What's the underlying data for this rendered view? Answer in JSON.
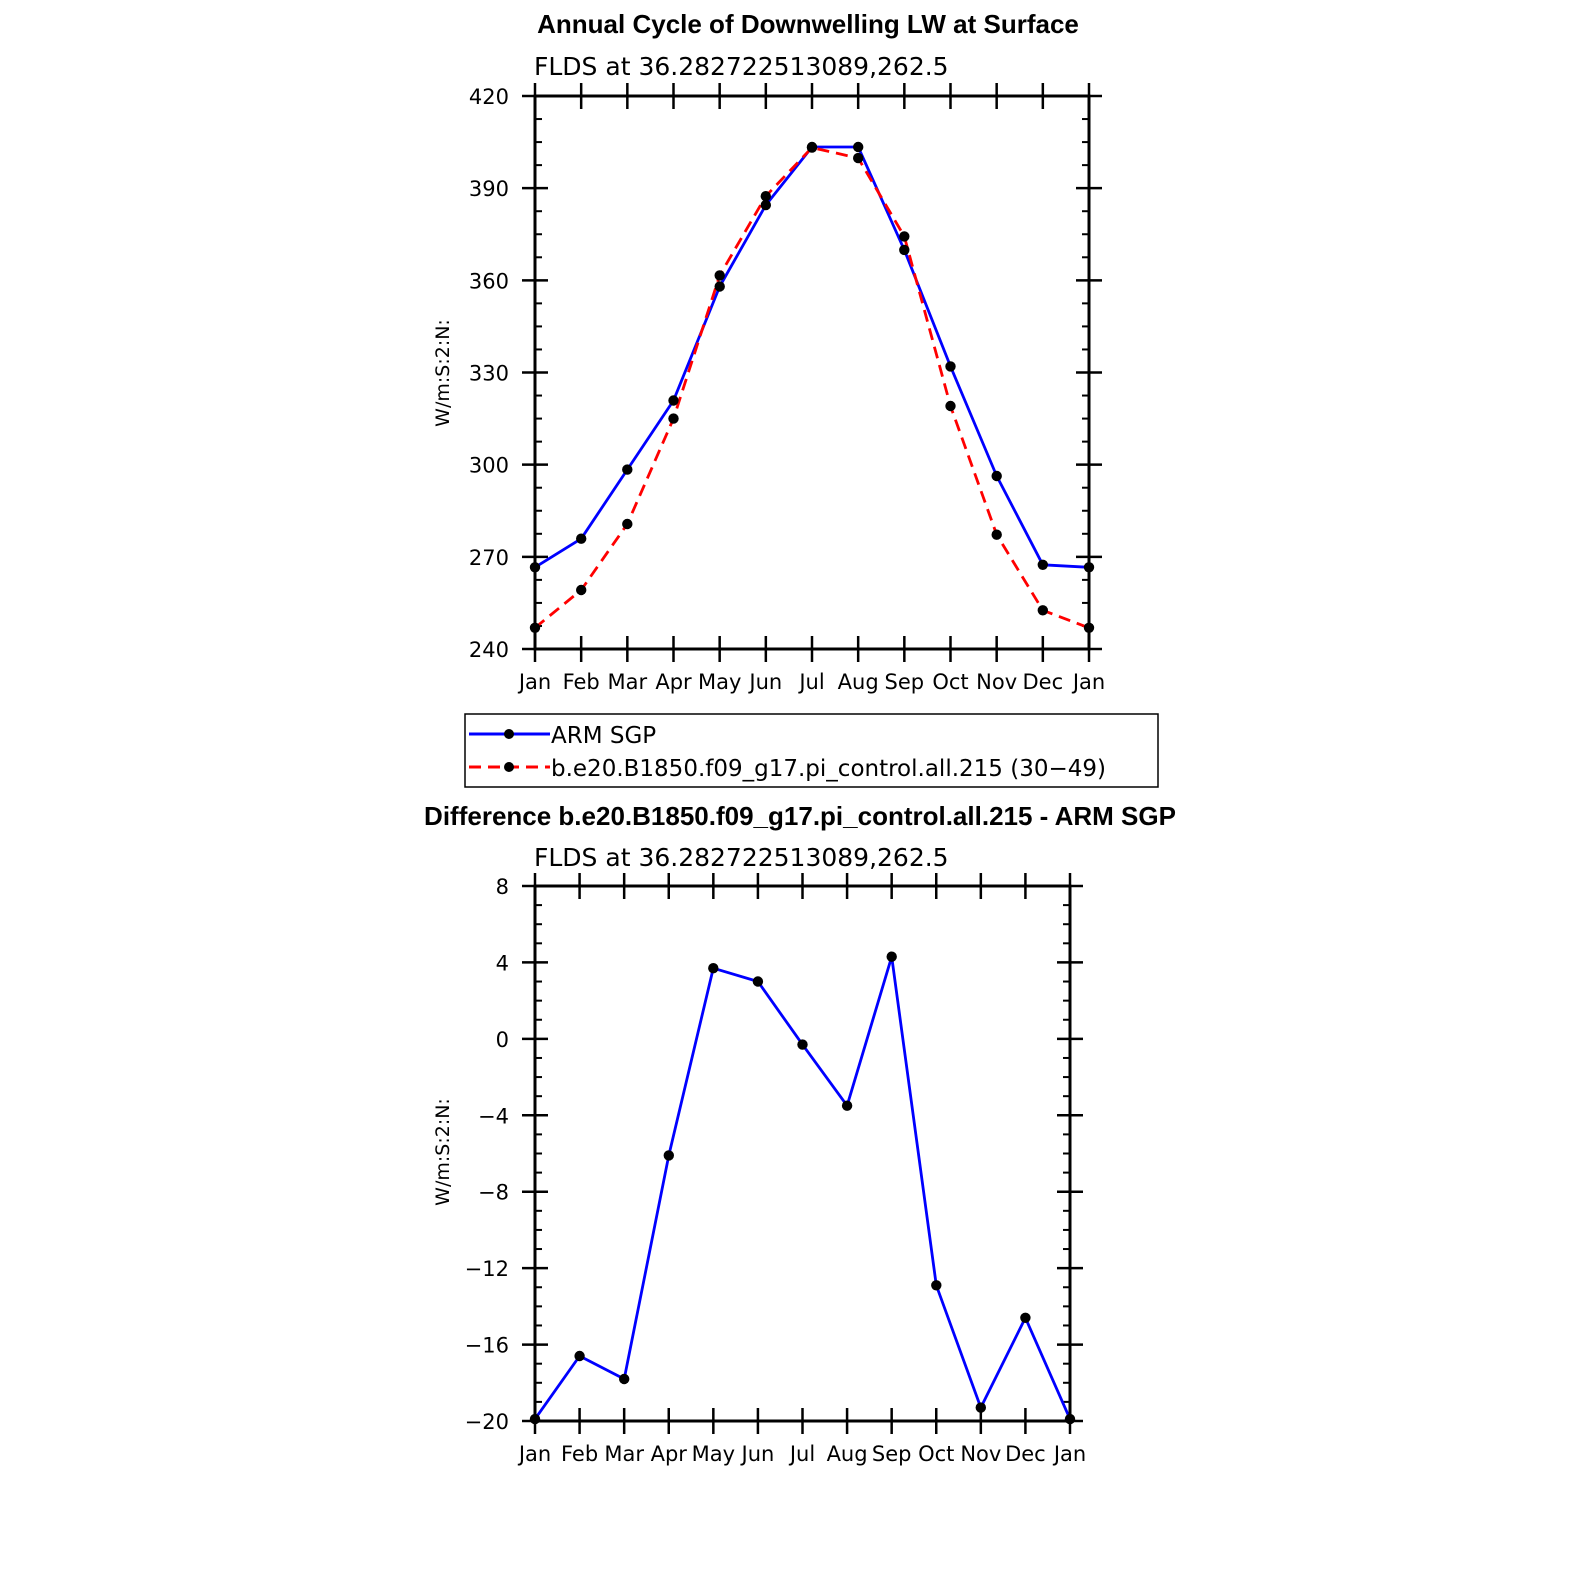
{
  "chart_data": [
    {
      "type": "line",
      "title": "Annual Cycle of Downwelling LW at Surface",
      "subtitle": "FLDS at 36.282722513089,262.5",
      "ylabel": "W/m:S:2:N:",
      "categories": [
        "Jan",
        "Feb",
        "Mar",
        "Apr",
        "May",
        "Jun",
        "Jul",
        "Aug",
        "Sep",
        "Oct",
        "Nov",
        "Dec",
        "Jan"
      ],
      "ylim": [
        240,
        420
      ],
      "yticks": [
        "240",
        "270",
        "300",
        "330",
        "360",
        "390",
        "420"
      ],
      "series": [
        {
          "name": "ARM SGP",
          "color": "#0000ff",
          "dash": "solid",
          "values": [
            266.6,
            275.9,
            298.4,
            320.9,
            358.0,
            384.5,
            403.4,
            403.4,
            369.9,
            332.0,
            296.3,
            267.4,
            266.6
          ]
        },
        {
          "name": "b.e20.B1850.f09_g17.pi_control.all.215 (30−49)",
          "color": "#ff0000",
          "dash": "dashed",
          "values": [
            246.9,
            259.2,
            280.7,
            315.0,
            361.6,
            387.4,
            403.2,
            399.8,
            374.3,
            319.1,
            277.2,
            252.6,
            246.9
          ]
        }
      ],
      "legend": "below"
    },
    {
      "type": "line",
      "title": "Difference b.e20.B1850.f09_g17.pi_control.all.215 - ARM SGP",
      "subtitle": "FLDS at 36.282722513089,262.5",
      "ylabel": "W/m:S:2:N:",
      "categories": [
        "Jan",
        "Feb",
        "Mar",
        "Apr",
        "May",
        "Jun",
        "Jul",
        "Aug",
        "Sep",
        "Oct",
        "Nov",
        "Dec",
        "Jan"
      ],
      "ylim": [
        -20,
        8
      ],
      "yticks": [
        "−20",
        "−16",
        "−12",
        "−8",
        "−4",
        "0",
        "4",
        "8"
      ],
      "series": [
        {
          "color": "#0000ff",
          "values": [
            -19.9,
            -16.6,
            -17.8,
            -6.1,
            3.7,
            3.0,
            -0.3,
            -3.5,
            4.3,
            -12.9,
            -19.3,
            -14.6,
            -19.9
          ]
        }
      ]
    }
  ]
}
